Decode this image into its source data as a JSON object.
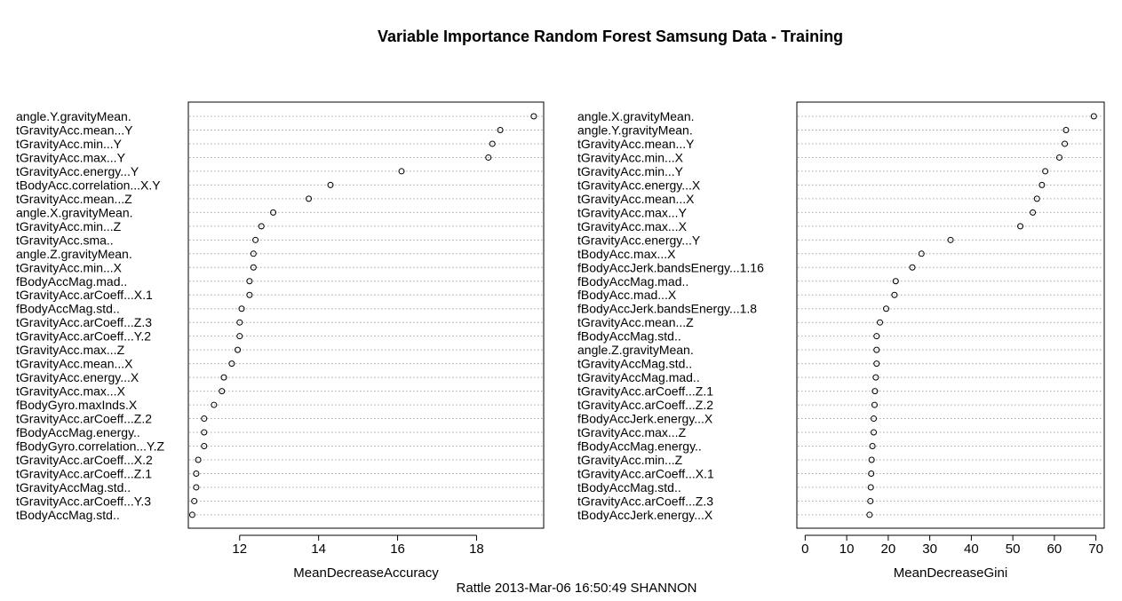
{
  "title": "Variable Importance Random Forest Samsung Data - Training",
  "footer": "Rattle 2013-Mar-06 16:50:49 SHANNON",
  "chart_data": [
    {
      "type": "scatter",
      "subtype": "dotchart",
      "xlabel": "MeanDecreaseAccuracy",
      "ylabel": "",
      "xlim": [
        10.7,
        19.7
      ],
      "xticks": [
        12,
        14,
        16,
        18
      ],
      "grid": "dotted horizontal lines per variable",
      "variables": [
        "angle.Y.gravityMean.",
        "tGravityAcc.mean...Y",
        "tGravityAcc.min...Y",
        "tGravityAcc.max...Y",
        "tGravityAcc.energy...Y",
        "tBodyAcc.correlation...X.Y",
        "tGravityAcc.mean...Z",
        "angle.X.gravityMean.",
        "tGravityAcc.min...Z",
        "tGravityAcc.sma..",
        "angle.Z.gravityMean.",
        "tGravityAcc.min...X",
        "fBodyAccMag.mad..",
        "tGravityAcc.arCoeff...X.1",
        "fBodyAccMag.std..",
        "tGravityAcc.arCoeff...Z.3",
        "tGravityAcc.arCoeff...Y.2",
        "tGravityAcc.max...Z",
        "tGravityAcc.mean...X",
        "tGravityAcc.energy...X",
        "tGravityAcc.max...X",
        "fBodyGyro.maxInds.X",
        "tGravityAcc.arCoeff...Z.2",
        "fBodyAccMag.energy..",
        "fBodyGyro.correlation...Y.Z",
        "tGravityAcc.arCoeff...X.2",
        "tGravityAcc.arCoeff...Z.1",
        "tGravityAccMag.std..",
        "tGravityAcc.arCoeff...Y.3",
        "tBodyAccMag.std.."
      ],
      "values": [
        19.45,
        18.6,
        18.4,
        18.3,
        16.1,
        14.3,
        13.75,
        12.85,
        12.55,
        12.4,
        12.35,
        12.35,
        12.25,
        12.25,
        12.05,
        12.0,
        12.0,
        11.95,
        11.8,
        11.6,
        11.55,
        11.35,
        11.1,
        11.1,
        11.1,
        10.95,
        10.9,
        10.9,
        10.85,
        10.8
      ]
    },
    {
      "type": "scatter",
      "subtype": "dotchart",
      "xlabel": "MeanDecreaseGini",
      "ylabel": "",
      "xlim": [
        -2,
        72
      ],
      "xticks": [
        0,
        10,
        20,
        30,
        40,
        50,
        60,
        70
      ],
      "grid": "dotted horizontal lines per variable",
      "variables": [
        "angle.X.gravityMean.",
        "angle.Y.gravityMean.",
        "tGravityAcc.mean...Y",
        "tGravityAcc.min...X",
        "tGravityAcc.min...Y",
        "tGravityAcc.energy...X",
        "tGravityAcc.mean...X",
        "tGravityAcc.max...Y",
        "tGravityAcc.max...X",
        "tGravityAcc.energy...Y",
        "tBodyAcc.max...X",
        "fBodyAccJerk.bandsEnergy...1.16",
        "fBodyAccMag.mad..",
        "fBodyAcc.mad...X",
        "fBodyAccJerk.bandsEnergy...1.8",
        "tGravityAcc.mean...Z",
        "fBodyAccMag.std..",
        "angle.Z.gravityMean.",
        "tGravityAccMag.std..",
        "tGravityAccMag.mad..",
        "tGravityAcc.arCoeff...Z.1",
        "tGravityAcc.arCoeff...Z.2",
        "fBodyAccJerk.energy...X",
        "tGravityAcc.max...Z",
        "fBodyAccMag.energy..",
        "tGravityAcc.min...Z",
        "tGravityAcc.arCoeff...X.1",
        "tBodyAccMag.std..",
        "tGravityAcc.arCoeff...Z.3",
        "tBodyAccJerk.energy...X"
      ],
      "values": [
        69.5,
        62.8,
        62.5,
        61.2,
        57.8,
        57.0,
        55.8,
        54.8,
        51.8,
        35.0,
        28.0,
        25.8,
        21.8,
        21.5,
        19.5,
        18.0,
        17.2,
        17.2,
        17.2,
        17.0,
        16.8,
        16.7,
        16.5,
        16.5,
        16.2,
        16.0,
        15.9,
        15.8,
        15.7,
        15.5
      ]
    }
  ]
}
